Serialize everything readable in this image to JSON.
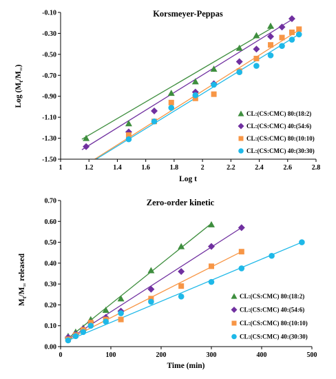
{
  "chart_data": [
    {
      "type": "scatter",
      "title": "Korsmeyer-Peppas",
      "xlabel": "Log t",
      "ylabel": "Log (Mt/M∞)",
      "ylabel_main": "Log (M",
      "ylabel_sub1": "t",
      "ylabel_mid": "/M",
      "ylabel_sub2": "∞",
      "ylabel_end": ")",
      "xlim": [
        1,
        2.8
      ],
      "ylim": [
        -1.5,
        -0.1
      ],
      "xticks": [
        "1",
        "1.2",
        "1.4",
        "1.6",
        "1.8",
        "2",
        "2.2",
        "2.4",
        "2.6",
        "2.8"
      ],
      "xtick_values": [
        1,
        1.2,
        1.4,
        1.6,
        1.8,
        2,
        2.2,
        2.4,
        2.6,
        2.8
      ],
      "yticks": [
        "-1.50",
        "-1.30",
        "-1.10",
        "-0.90",
        "-0.70",
        "-0.50",
        "-0.30",
        "-0.10"
      ],
      "ytick_values": [
        -1.5,
        -1.3,
        -1.1,
        -0.9,
        -0.7,
        -0.5,
        -0.3,
        -0.1
      ],
      "legend_position": "bottom-right",
      "series": [
        {
          "name": "CL:(CS:CMC) 80:(18:2)",
          "marker": "triangle",
          "color": "#3e8e3e",
          "x": [
            1.18,
            1.48,
            1.78,
            1.95,
            2.08,
            2.26,
            2.38,
            2.48
          ],
          "y": [
            -1.3,
            -1.16,
            -0.87,
            -0.76,
            -0.64,
            -0.44,
            -0.32,
            -0.23
          ],
          "fit": [
            [
              1.15,
              -1.31
            ],
            [
              2.5,
              -0.24
            ]
          ]
        },
        {
          "name": "CL:(CS:CMC) 40:(54:6)",
          "marker": "diamond",
          "color": "#7030a0",
          "x": [
            1.18,
            1.48,
            1.66,
            1.95,
            2.08,
            2.26,
            2.38,
            2.48,
            2.56,
            2.63
          ],
          "y": [
            -1.38,
            -1.24,
            -1.04,
            -0.86,
            -0.78,
            -0.57,
            -0.45,
            -0.33,
            -0.24,
            -0.16
          ],
          "fit": [
            [
              1.15,
              -1.41
            ],
            [
              2.64,
              -0.16
            ]
          ]
        },
        {
          "name": "CL:(CS:CMC) 80:(10:10)",
          "marker": "square",
          "color": "#f79646",
          "x": [
            1.48,
            1.66,
            1.78,
            1.95,
            2.08,
            2.26,
            2.38,
            2.48,
            2.56,
            2.63,
            2.68
          ],
          "y": [
            -1.27,
            -1.14,
            -0.96,
            -0.92,
            -0.88,
            -0.66,
            -0.54,
            -0.41,
            -0.34,
            -0.29,
            -0.26
          ],
          "fit": [
            [
              1.24,
              -1.5
            ],
            [
              2.69,
              -0.26
            ]
          ]
        },
        {
          "name": "CL:(CS:CMC) 40:(30:30)",
          "marker": "circle",
          "color": "#1eb8e8",
          "x": [
            1.48,
            1.66,
            1.78,
            1.95,
            2.08,
            2.26,
            2.38,
            2.48,
            2.56,
            2.63,
            2.68
          ],
          "y": [
            -1.31,
            -1.14,
            -1.01,
            -0.89,
            -0.79,
            -0.67,
            -0.61,
            -0.51,
            -0.42,
            -0.36,
            -0.31
          ],
          "fit": [
            [
              1.25,
              -1.5
            ],
            [
              2.69,
              -0.3
            ]
          ]
        }
      ]
    },
    {
      "type": "scatter",
      "title": "Zero-order kinetic",
      "xlabel": "Time (min)",
      "ylabel": "Mt/M∞ released",
      "ylabel_main": "M",
      "ylabel_sub1": "t",
      "ylabel_mid": "/M",
      "ylabel_sub2": "∞",
      "ylabel_end": "  released",
      "xlim": [
        0,
        500
      ],
      "ylim": [
        0,
        0.7
      ],
      "xticks": [
        "0",
        "100",
        "200",
        "300",
        "400",
        "500"
      ],
      "xtick_values": [
        0,
        100,
        200,
        300,
        400,
        500
      ],
      "yticks": [
        "0.00",
        "0.10",
        "0.20",
        "0.30",
        "0.40",
        "0.50",
        "0.60",
        "0.70"
      ],
      "ytick_values": [
        0,
        0.1,
        0.2,
        0.3,
        0.4,
        0.5,
        0.6,
        0.7
      ],
      "legend_position": "bottom-right",
      "series": [
        {
          "name": "CL:(CS:CMC) 80:(18:2)",
          "marker": "triangle",
          "color": "#3e8e3e",
          "x": [
            15,
            30,
            45,
            60,
            90,
            120,
            180,
            240,
            300
          ],
          "y": [
            0.05,
            0.07,
            0.09,
            0.13,
            0.175,
            0.23,
            0.365,
            0.48,
            0.585
          ],
          "fit": [
            [
              15,
              0.04
            ],
            [
              300,
              0.59
            ]
          ]
        },
        {
          "name": "CL:(CS:CMC) 40:(54:6)",
          "marker": "diamond",
          "color": "#7030a0",
          "x": [
            15,
            30,
            45,
            60,
            90,
            120,
            180,
            240,
            300,
            360
          ],
          "y": [
            0.045,
            0.06,
            0.085,
            0.115,
            0.14,
            0.17,
            0.275,
            0.36,
            0.48,
            0.57
          ],
          "fit": [
            [
              15,
              0.035
            ],
            [
              360,
              0.57
            ]
          ]
        },
        {
          "name": "CL:(CS:CMC) 80:(10:10)",
          "marker": "square",
          "color": "#f79646",
          "x": [
            15,
            30,
            45,
            60,
            90,
            120,
            180,
            240,
            300,
            360
          ],
          "y": [
            0.035,
            0.055,
            0.08,
            0.115,
            0.13,
            0.13,
            0.23,
            0.29,
            0.385,
            0.455
          ],
          "fit": [
            [
              15,
              0.035
            ],
            [
              360,
              0.455
            ]
          ]
        },
        {
          "name": "CL:(CS:CMC) 40:(30:30)",
          "marker": "circle",
          "color": "#1eb8e8",
          "x": [
            15,
            30,
            45,
            60,
            90,
            120,
            180,
            240,
            300,
            360,
            420,
            480
          ],
          "y": [
            0.03,
            0.05,
            0.07,
            0.1,
            0.12,
            0.16,
            0.215,
            0.24,
            0.31,
            0.375,
            0.435,
            0.5
          ],
          "fit": [
            [
              15,
              0.03
            ],
            [
              480,
              0.5
            ]
          ]
        }
      ]
    }
  ]
}
